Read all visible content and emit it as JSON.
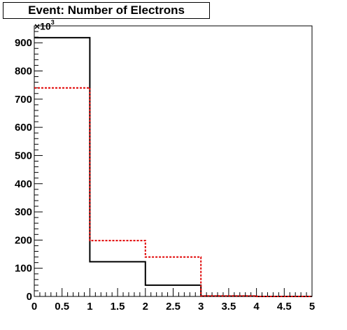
{
  "chart_data": {
    "type": "histogram",
    "title": "Event: Number of Electrons",
    "y_multiplier": "×10",
    "y_multiplier_exp": "3",
    "xlim": [
      0,
      5
    ],
    "ylim": [
      0,
      960
    ],
    "x_ticks": [
      "0",
      "0.5",
      "1",
      "1.5",
      "2",
      "2.5",
      "3",
      "3.5",
      "4",
      "4.5",
      "5"
    ],
    "x_tick_values": [
      0,
      0.5,
      1,
      1.5,
      2,
      2.5,
      3,
      3.5,
      4,
      4.5,
      5
    ],
    "y_ticks": [
      "0",
      "100",
      "200",
      "300",
      "400",
      "500",
      "600",
      "700",
      "800",
      "900"
    ],
    "y_tick_values": [
      0,
      100,
      200,
      300,
      400,
      500,
      600,
      700,
      800,
      900
    ],
    "bin_edges": [
      0,
      1,
      2,
      3,
      4,
      5
    ],
    "series": [
      {
        "style": "solid",
        "color": "#000000",
        "values": [
          918,
          123,
          40,
          1,
          0
        ]
      },
      {
        "style": "dotted",
        "color": "#e00000",
        "values": [
          740,
          198,
          140,
          2,
          0
        ]
      }
    ],
    "grid": false,
    "legend": "none"
  }
}
